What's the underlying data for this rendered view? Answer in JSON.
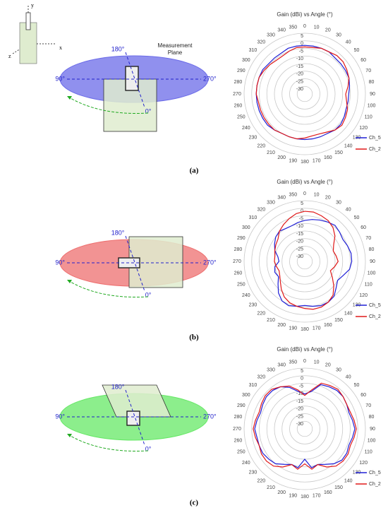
{
  "axes_sketch": {
    "x": "x",
    "y": "y",
    "z": "z"
  },
  "panels": [
    {
      "caption": "(a)",
      "labels": {
        "top": "180°",
        "left": "90°",
        "right": "270°",
        "bottom": "0°"
      },
      "plane_label": "Measurement Plane"
    },
    {
      "caption": "(b)",
      "labels": {
        "top": "180°",
        "left": "90°",
        "right": "270°",
        "bottom": "0°"
      }
    },
    {
      "caption": "(c)",
      "labels": {
        "top": "180°",
        "left": "90°",
        "right": "270°",
        "bottom": "0°"
      }
    }
  ],
  "chart_data": [
    {
      "type": "polar",
      "title": "Gain (dBi) vs Angle (°)",
      "theta": [
        0,
        10,
        20,
        30,
        40,
        50,
        60,
        70,
        80,
        90,
        100,
        110,
        120,
        130,
        140,
        150,
        160,
        170,
        180,
        190,
        200,
        210,
        220,
        230,
        240,
        250,
        260,
        270,
        280,
        290,
        300,
        310,
        320,
        330,
        340,
        350
      ],
      "rlim": [
        -35,
        5
      ],
      "rticks": [
        5,
        0,
        -5,
        -10,
        -15,
        -20,
        -25,
        -30
      ],
      "grid": true,
      "legend": "lower right",
      "series": [
        {
          "name": "Ch_5",
          "color": "#1f1fd6",
          "values": [
            -3,
            -3,
            -3,
            -3,
            -4,
            -4,
            -4,
            -4,
            -5,
            -6,
            -6,
            -6,
            -5,
            -4,
            -4,
            -5,
            -5,
            -5,
            -5,
            -5,
            -5,
            -5,
            -4,
            -3,
            -3,
            -3,
            -3,
            -3,
            -3,
            -3,
            -3,
            -4,
            -4,
            -4,
            -3,
            -3
          ]
        },
        {
          "name": "Ch_2",
          "color": "#e01818",
          "values": [
            -4,
            -4,
            -3,
            -3,
            -2,
            -2,
            -3,
            -4,
            -6,
            -8,
            -7,
            -5,
            -4,
            -3,
            -4,
            -6,
            -7,
            -7,
            -6,
            -5,
            -5,
            -5,
            -4,
            -4,
            -4,
            -4,
            -4,
            -3,
            -3,
            -3,
            -4,
            -5,
            -6,
            -6,
            -5,
            -4
          ]
        }
      ]
    },
    {
      "type": "polar",
      "title": "Gain (dBi) vs Angle (°)",
      "theta": [
        0,
        10,
        20,
        30,
        40,
        50,
        60,
        70,
        80,
        90,
        100,
        110,
        120,
        130,
        140,
        150,
        160,
        170,
        180,
        190,
        200,
        210,
        220,
        230,
        240,
        250,
        260,
        270,
        280,
        290,
        300,
        310,
        320,
        330,
        340,
        350
      ],
      "rlim": [
        -35,
        5
      ],
      "rticks": [
        5,
        0,
        -5,
        -10,
        -15,
        -20,
        -25,
        -30
      ],
      "grid": true,
      "legend": "lower right",
      "series": [
        {
          "name": "Ch_5",
          "color": "#1f1fd6",
          "values": [
            -8,
            -7,
            -6,
            -5,
            -4,
            -5,
            -6,
            -5,
            -4,
            -4,
            -5,
            -8,
            -10,
            -8,
            -5,
            -4,
            -4,
            -5,
            -6,
            -5,
            -4,
            -5,
            -8,
            -12,
            -15,
            -14,
            -15,
            -18,
            -17,
            -14,
            -12,
            -10,
            -9,
            -10,
            -10,
            -9
          ]
        },
        {
          "name": "Ch_2",
          "color": "#e01818",
          "values": [
            -2,
            -2,
            -3,
            -4,
            -6,
            -9,
            -13,
            -15,
            -14,
            -13,
            -15,
            -17,
            -14,
            -10,
            -6,
            -4,
            -3,
            -3,
            -4,
            -5,
            -6,
            -8,
            -11,
            -14,
            -16,
            -17,
            -16,
            -15,
            -15,
            -14,
            -13,
            -12,
            -9,
            -7,
            -5,
            -3
          ]
        }
      ]
    },
    {
      "type": "polar",
      "title": "Gain (dBi) vs Angle (°)",
      "theta": [
        0,
        10,
        20,
        30,
        40,
        50,
        60,
        70,
        80,
        90,
        100,
        110,
        120,
        130,
        140,
        150,
        160,
        170,
        180,
        190,
        200,
        210,
        220,
        230,
        240,
        250,
        260,
        270,
        280,
        290,
        300,
        310,
        320,
        330,
        340,
        350
      ],
      "rlim": [
        -35,
        5
      ],
      "rticks": [
        5,
        0,
        -5,
        -10,
        -15,
        -20,
        -25,
        -30
      ],
      "grid": true,
      "legend": "lower right",
      "series": [
        {
          "name": "Ch_5",
          "color": "#1f1fd6",
          "values": [
            -12,
            -10,
            -4,
            -3,
            -2,
            -2,
            -3,
            -4,
            -3,
            -2,
            -3,
            -4,
            -3,
            -3,
            -5,
            -8,
            -10,
            -9,
            -15,
            -9,
            -10,
            -8,
            -5,
            -4,
            -3,
            -3,
            -3,
            -2,
            -3,
            -4,
            -3,
            -2,
            -2,
            -3,
            -6,
            -10
          ]
        },
        {
          "name": "Ch_2",
          "color": "#e01818",
          "values": [
            -13,
            -9,
            -3,
            -2,
            -1,
            -2,
            -3,
            -3,
            -2,
            -1,
            -2,
            -3,
            -2,
            -2,
            -3,
            -6,
            -10,
            -8,
            -12,
            -8,
            -10,
            -6,
            -3,
            -2,
            -2,
            -3,
            -2,
            -1,
            -2,
            -3,
            -2,
            -1,
            -1,
            -3,
            -5,
            -9
          ]
        }
      ]
    }
  ]
}
